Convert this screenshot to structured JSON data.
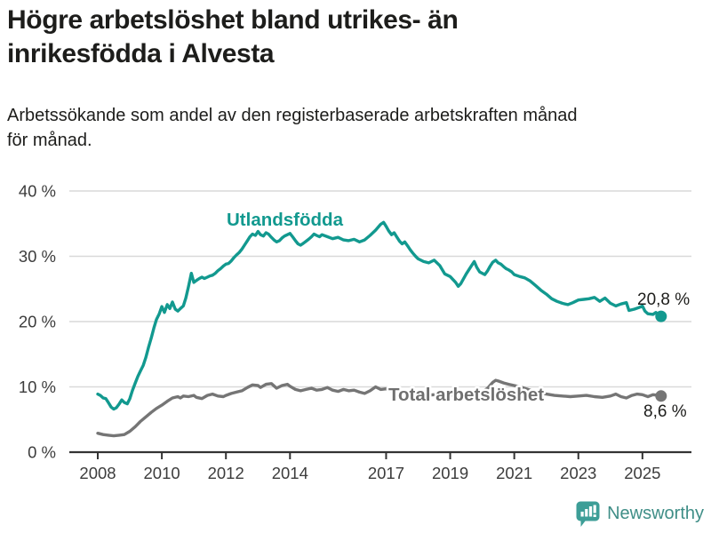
{
  "header": {
    "title_line1": "Högre arbetslöshet bland utrikes- än",
    "title_line2": "inrikesfödda i Alvesta",
    "subtitle_line1": "Arbetssökande som andel av den registerbaserade arbetskraften månad",
    "subtitle_line2": "för månad."
  },
  "footer": {
    "brand": "Newsworthy",
    "logo_icon": "bar-chart-speech-bubble-icon"
  },
  "colors": {
    "teal": "#12998f",
    "gray": "#757575",
    "gray_label": "#6f6f6f",
    "grid": "#d9d9d9",
    "axis": "#333333",
    "text": "#1d1d1b",
    "brand_teal": "#3f8e87",
    "logo_fill": "#3d9e97"
  },
  "chart_data": {
    "type": "line",
    "title": "Högre arbetslöshet bland utrikes- än inrikesfödda i Alvesta",
    "subtitle": "Arbetssökande som andel av den registerbaserade arbetskraften månad för månad.",
    "xlabel": "",
    "ylabel": "",
    "ylim": [
      0,
      40
    ],
    "x_range_years": [
      2008.0,
      2025.58
    ],
    "grid": "horizontal",
    "legend_position": "inline-labels",
    "y_ticks": [
      {
        "value": 0,
        "label": "0 %"
      },
      {
        "value": 10,
        "label": "10 %"
      },
      {
        "value": 20,
        "label": "20 %"
      },
      {
        "value": 30,
        "label": "30 %"
      },
      {
        "value": 40,
        "label": "40 %"
      }
    ],
    "x_ticks": [
      {
        "value": 2008,
        "label": "2008"
      },
      {
        "value": 2010,
        "label": "2010"
      },
      {
        "value": 2012,
        "label": "2012"
      },
      {
        "value": 2014,
        "label": "2014"
      },
      {
        "value": 2017,
        "label": "2017"
      },
      {
        "value": 2019,
        "label": "2019"
      },
      {
        "value": 2021,
        "label": "2021"
      },
      {
        "value": 2023,
        "label": "2023"
      },
      {
        "value": 2025,
        "label": "2025"
      }
    ],
    "series": [
      {
        "name": "Utlandsfödda",
        "color": "#12998f",
        "end_label": "20,8 %",
        "end_value": 20.8,
        "points": [
          [
            2008.0,
            8.9
          ],
          [
            2008.08,
            8.7
          ],
          [
            2008.17,
            8.3
          ],
          [
            2008.25,
            8.2
          ],
          [
            2008.33,
            7.6
          ],
          [
            2008.42,
            6.9
          ],
          [
            2008.5,
            6.6
          ],
          [
            2008.58,
            6.8
          ],
          [
            2008.67,
            7.4
          ],
          [
            2008.75,
            8.0
          ],
          [
            2008.83,
            7.6
          ],
          [
            2008.92,
            7.4
          ],
          [
            2009.0,
            8.2
          ],
          [
            2009.08,
            9.4
          ],
          [
            2009.17,
            10.6
          ],
          [
            2009.25,
            11.6
          ],
          [
            2009.33,
            12.4
          ],
          [
            2009.42,
            13.3
          ],
          [
            2009.5,
            14.5
          ],
          [
            2009.58,
            16.0
          ],
          [
            2009.67,
            17.5
          ],
          [
            2009.75,
            19.0
          ],
          [
            2009.83,
            20.3
          ],
          [
            2009.92,
            21.2
          ],
          [
            2010.0,
            22.3
          ],
          [
            2010.08,
            21.4
          ],
          [
            2010.17,
            22.6
          ],
          [
            2010.25,
            22.0
          ],
          [
            2010.33,
            23.0
          ],
          [
            2010.42,
            21.9
          ],
          [
            2010.5,
            21.6
          ],
          [
            2010.58,
            22.0
          ],
          [
            2010.67,
            22.4
          ],
          [
            2010.75,
            23.6
          ],
          [
            2010.83,
            25.3
          ],
          [
            2010.92,
            27.4
          ],
          [
            2011.0,
            26.0
          ],
          [
            2011.08,
            26.3
          ],
          [
            2011.17,
            26.6
          ],
          [
            2011.25,
            26.8
          ],
          [
            2011.33,
            26.6
          ],
          [
            2011.42,
            26.8
          ],
          [
            2011.5,
            27.0
          ],
          [
            2011.58,
            27.1
          ],
          [
            2011.67,
            27.4
          ],
          [
            2011.75,
            27.8
          ],
          [
            2011.83,
            28.1
          ],
          [
            2011.92,
            28.5
          ],
          [
            2012.0,
            28.8
          ],
          [
            2012.08,
            28.9
          ],
          [
            2012.17,
            29.3
          ],
          [
            2012.25,
            29.8
          ],
          [
            2012.33,
            30.2
          ],
          [
            2012.42,
            30.6
          ],
          [
            2012.5,
            31.1
          ],
          [
            2012.58,
            31.7
          ],
          [
            2012.67,
            32.4
          ],
          [
            2012.75,
            33.0
          ],
          [
            2012.83,
            33.4
          ],
          [
            2012.92,
            33.2
          ],
          [
            2013.0,
            33.8
          ],
          [
            2013.08,
            33.3
          ],
          [
            2013.17,
            33.1
          ],
          [
            2013.25,
            33.6
          ],
          [
            2013.33,
            33.4
          ],
          [
            2013.42,
            32.9
          ],
          [
            2013.5,
            32.5
          ],
          [
            2013.58,
            32.2
          ],
          [
            2013.67,
            32.4
          ],
          [
            2013.75,
            32.8
          ],
          [
            2013.83,
            33.1
          ],
          [
            2013.92,
            33.3
          ],
          [
            2014.0,
            33.5
          ],
          [
            2014.08,
            33.0
          ],
          [
            2014.17,
            32.4
          ],
          [
            2014.25,
            31.9
          ],
          [
            2014.33,
            31.7
          ],
          [
            2014.42,
            32.0
          ],
          [
            2014.5,
            32.3
          ],
          [
            2014.58,
            32.6
          ],
          [
            2014.67,
            33.0
          ],
          [
            2014.75,
            33.4
          ],
          [
            2014.83,
            33.2
          ],
          [
            2014.92,
            33.0
          ],
          [
            2015.0,
            33.3
          ],
          [
            2015.17,
            33.0
          ],
          [
            2015.33,
            32.7
          ],
          [
            2015.5,
            32.9
          ],
          [
            2015.67,
            32.5
          ],
          [
            2015.83,
            32.4
          ],
          [
            2016.0,
            32.6
          ],
          [
            2016.17,
            32.2
          ],
          [
            2016.33,
            32.5
          ],
          [
            2016.5,
            33.2
          ],
          [
            2016.67,
            34.0
          ],
          [
            2016.83,
            34.9
          ],
          [
            2016.92,
            35.2
          ],
          [
            2017.0,
            34.6
          ],
          [
            2017.08,
            33.9
          ],
          [
            2017.17,
            33.3
          ],
          [
            2017.25,
            33.6
          ],
          [
            2017.33,
            33.0
          ],
          [
            2017.42,
            32.3
          ],
          [
            2017.5,
            31.9
          ],
          [
            2017.58,
            32.2
          ],
          [
            2017.67,
            31.6
          ],
          [
            2017.75,
            31.0
          ],
          [
            2017.83,
            30.5
          ],
          [
            2017.92,
            30.0
          ],
          [
            2018.0,
            29.6
          ],
          [
            2018.17,
            29.2
          ],
          [
            2018.33,
            29.0
          ],
          [
            2018.5,
            29.4
          ],
          [
            2018.67,
            28.6
          ],
          [
            2018.83,
            27.3
          ],
          [
            2019.0,
            26.9
          ],
          [
            2019.17,
            26.0
          ],
          [
            2019.25,
            25.4
          ],
          [
            2019.33,
            25.8
          ],
          [
            2019.5,
            27.3
          ],
          [
            2019.67,
            28.6
          ],
          [
            2019.75,
            29.2
          ],
          [
            2019.83,
            28.3
          ],
          [
            2019.92,
            27.6
          ],
          [
            2020.0,
            27.4
          ],
          [
            2020.08,
            27.2
          ],
          [
            2020.17,
            27.8
          ],
          [
            2020.25,
            28.5
          ],
          [
            2020.33,
            29.1
          ],
          [
            2020.42,
            29.4
          ],
          [
            2020.5,
            29.0
          ],
          [
            2020.58,
            28.8
          ],
          [
            2020.67,
            28.4
          ],
          [
            2020.75,
            28.1
          ],
          [
            2020.83,
            27.9
          ],
          [
            2020.92,
            27.6
          ],
          [
            2021.0,
            27.2
          ],
          [
            2021.17,
            26.9
          ],
          [
            2021.33,
            26.7
          ],
          [
            2021.5,
            26.2
          ],
          [
            2021.67,
            25.5
          ],
          [
            2021.83,
            24.8
          ],
          [
            2022.0,
            24.2
          ],
          [
            2022.17,
            23.5
          ],
          [
            2022.33,
            23.1
          ],
          [
            2022.5,
            22.8
          ],
          [
            2022.67,
            22.6
          ],
          [
            2022.83,
            22.9
          ],
          [
            2023.0,
            23.3
          ],
          [
            2023.17,
            23.4
          ],
          [
            2023.33,
            23.5
          ],
          [
            2023.5,
            23.7
          ],
          [
            2023.67,
            23.1
          ],
          [
            2023.83,
            23.6
          ],
          [
            2024.0,
            22.8
          ],
          [
            2024.17,
            22.4
          ],
          [
            2024.33,
            22.7
          ],
          [
            2024.5,
            22.9
          ],
          [
            2024.58,
            21.7
          ],
          [
            2024.75,
            21.9
          ],
          [
            2024.92,
            22.2
          ],
          [
            2025.0,
            22.4
          ],
          [
            2025.08,
            21.6
          ],
          [
            2025.17,
            21.2
          ],
          [
            2025.33,
            21.1
          ],
          [
            2025.42,
            21.4
          ],
          [
            2025.5,
            21.0
          ],
          [
            2025.58,
            20.8
          ]
        ]
      },
      {
        "name": "Total arbetslöshet",
        "color": "#757575",
        "end_label": "8,6 %",
        "end_value": 8.6,
        "points": [
          [
            2008.0,
            2.9
          ],
          [
            2008.17,
            2.7
          ],
          [
            2008.33,
            2.6
          ],
          [
            2008.5,
            2.5
          ],
          [
            2008.67,
            2.6
          ],
          [
            2008.83,
            2.7
          ],
          [
            2009.0,
            3.2
          ],
          [
            2009.17,
            3.9
          ],
          [
            2009.33,
            4.7
          ],
          [
            2009.5,
            5.4
          ],
          [
            2009.67,
            6.1
          ],
          [
            2009.83,
            6.7
          ],
          [
            2010.0,
            7.2
          ],
          [
            2010.17,
            7.8
          ],
          [
            2010.33,
            8.3
          ],
          [
            2010.5,
            8.5
          ],
          [
            2010.58,
            8.3
          ],
          [
            2010.67,
            8.6
          ],
          [
            2010.83,
            8.5
          ],
          [
            2011.0,
            8.7
          ],
          [
            2011.08,
            8.4
          ],
          [
            2011.25,
            8.2
          ],
          [
            2011.42,
            8.7
          ],
          [
            2011.58,
            8.9
          ],
          [
            2011.75,
            8.6
          ],
          [
            2011.92,
            8.5
          ],
          [
            2012.0,
            8.7
          ],
          [
            2012.17,
            9.0
          ],
          [
            2012.33,
            9.2
          ],
          [
            2012.5,
            9.4
          ],
          [
            2012.67,
            9.9
          ],
          [
            2012.83,
            10.3
          ],
          [
            2013.0,
            10.2
          ],
          [
            2013.08,
            9.9
          ],
          [
            2013.25,
            10.4
          ],
          [
            2013.42,
            10.5
          ],
          [
            2013.58,
            9.8
          ],
          [
            2013.75,
            10.2
          ],
          [
            2013.92,
            10.4
          ],
          [
            2014.0,
            10.1
          ],
          [
            2014.17,
            9.6
          ],
          [
            2014.33,
            9.4
          ],
          [
            2014.5,
            9.6
          ],
          [
            2014.67,
            9.8
          ],
          [
            2014.83,
            9.5
          ],
          [
            2015.0,
            9.6
          ],
          [
            2015.17,
            9.9
          ],
          [
            2015.33,
            9.5
          ],
          [
            2015.5,
            9.3
          ],
          [
            2015.67,
            9.6
          ],
          [
            2015.83,
            9.4
          ],
          [
            2016.0,
            9.5
          ],
          [
            2016.17,
            9.2
          ],
          [
            2016.33,
            9.0
          ],
          [
            2016.5,
            9.4
          ],
          [
            2016.67,
            10.0
          ],
          [
            2016.83,
            9.6
          ],
          [
            2017.0,
            9.7
          ],
          [
            2017.17,
            9.3
          ],
          [
            2017.33,
            9.1
          ],
          [
            2017.5,
            9.2
          ],
          [
            2017.67,
            9.0
          ],
          [
            2017.83,
            8.9
          ],
          [
            2018.0,
            8.8
          ],
          [
            2018.25,
            8.7
          ],
          [
            2018.5,
            8.8
          ],
          [
            2018.75,
            8.6
          ],
          [
            2019.0,
            8.7
          ],
          [
            2019.25,
            8.8
          ],
          [
            2019.5,
            9.0
          ],
          [
            2019.75,
            9.1
          ],
          [
            2020.0,
            9.2
          ],
          [
            2020.17,
            9.8
          ],
          [
            2020.33,
            10.7
          ],
          [
            2020.42,
            11.0
          ],
          [
            2020.5,
            10.9
          ],
          [
            2020.67,
            10.6
          ],
          [
            2020.83,
            10.4
          ],
          [
            2021.0,
            10.2
          ],
          [
            2021.25,
            9.9
          ],
          [
            2021.5,
            9.5
          ],
          [
            2021.75,
            9.1
          ],
          [
            2022.0,
            8.9
          ],
          [
            2022.25,
            8.7
          ],
          [
            2022.5,
            8.6
          ],
          [
            2022.75,
            8.5
          ],
          [
            2023.0,
            8.6
          ],
          [
            2023.25,
            8.7
          ],
          [
            2023.5,
            8.5
          ],
          [
            2023.75,
            8.4
          ],
          [
            2024.0,
            8.6
          ],
          [
            2024.17,
            8.9
          ],
          [
            2024.33,
            8.5
          ],
          [
            2024.5,
            8.3
          ],
          [
            2024.67,
            8.7
          ],
          [
            2024.83,
            8.9
          ],
          [
            2025.0,
            8.8
          ],
          [
            2025.17,
            8.5
          ],
          [
            2025.33,
            8.8
          ],
          [
            2025.5,
            8.7
          ],
          [
            2025.58,
            8.6
          ]
        ]
      }
    ]
  }
}
